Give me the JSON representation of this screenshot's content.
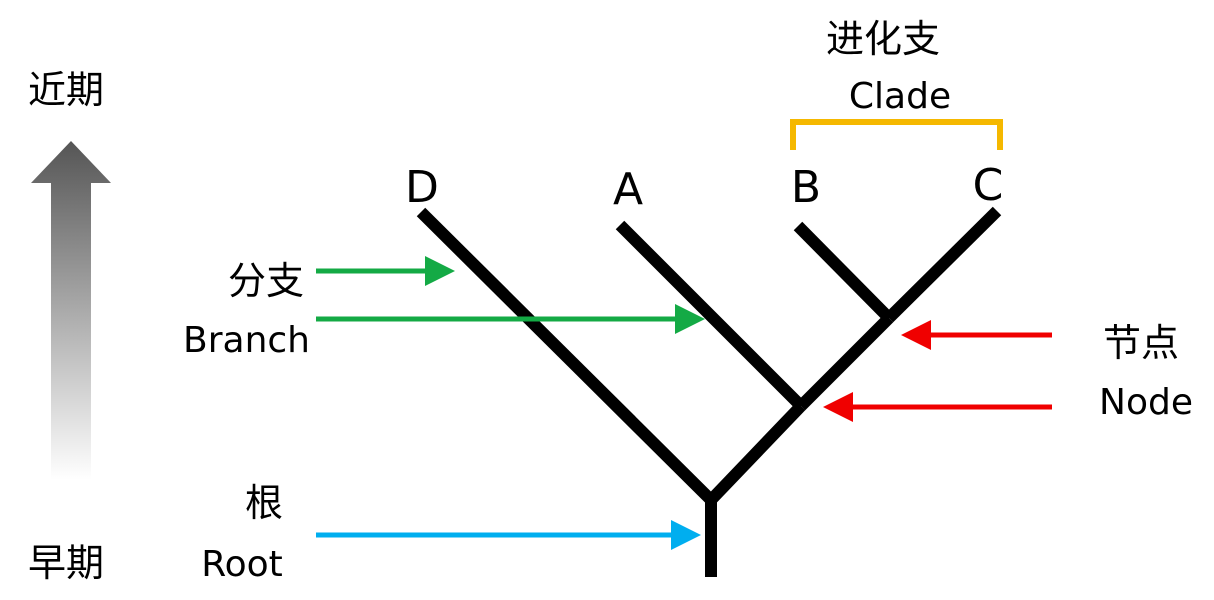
{
  "time_axis": {
    "top_label": "近期",
    "bottom_label": "早期"
  },
  "clade": {
    "zh": "进化支",
    "en": "Clade",
    "bracket_color": "#F5B800"
  },
  "tips": [
    "D",
    "A",
    "B",
    "C"
  ],
  "branch": {
    "zh": "分支",
    "en": "Branch",
    "arrow_color": "#14AA45"
  },
  "node": {
    "zh": "节点",
    "en": "Node",
    "arrow_color": "#F00000"
  },
  "root": {
    "zh": "根",
    "en": "Root",
    "arrow_color": "#00AEEF"
  },
  "tree_color": "#000000"
}
